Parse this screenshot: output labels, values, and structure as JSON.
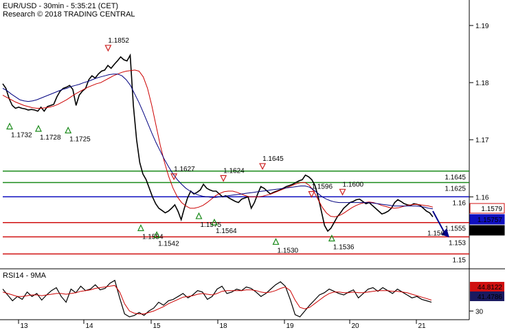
{
  "chart_data": [
    {
      "type": "line",
      "header": [
        "EUR/USD - 30min - 5:35:21 (CET)",
        "Research © 2018 TRADING CENTRAL"
      ],
      "x_ticks": [
        "13",
        "14",
        "15",
        "18",
        "19",
        "20",
        "21"
      ],
      "y_ticks": [
        "1.19",
        "1.18",
        "1.17",
        "1.16"
      ],
      "ylim": [
        1.148,
        1.1935
      ],
      "grid": false,
      "series": [
        {
          "role": "price",
          "color": "#000000",
          "values": [
            1.1798,
            1.179,
            1.1772,
            1.176,
            1.1755,
            1.1757,
            1.1755,
            1.1754,
            1.1752,
            1.1753,
            1.1752,
            1.175,
            1.1757,
            1.175,
            1.1758,
            1.176,
            1.1762,
            1.1775,
            1.1785,
            1.179,
            1.1792,
            1.1795,
            1.1788,
            1.176,
            1.1778,
            1.1785,
            1.179,
            1.1805,
            1.1812,
            1.1808,
            1.1815,
            1.182,
            1.1822,
            1.183,
            1.1825,
            1.1832,
            1.1838,
            1.1845,
            1.184,
            1.1838,
            1.1848,
            1.176,
            1.17,
            1.166,
            1.164,
            1.163,
            1.1615,
            1.16,
            1.1588,
            1.158,
            1.1576,
            1.1572,
            1.1575,
            1.158,
            1.1586,
            1.1575,
            1.156,
            1.158,
            1.1598,
            1.161,
            1.1605,
            1.1608,
            1.1612,
            1.1622,
            1.1615,
            1.1612,
            1.161,
            1.161,
            1.1605,
            1.16,
            1.1602,
            1.1598,
            1.1595,
            1.1592,
            1.159,
            1.1596,
            1.1598,
            1.16,
            1.158,
            1.159,
            1.1605,
            1.1618,
            1.1615,
            1.161,
            1.1605,
            1.1608,
            1.161,
            1.1612,
            1.1615,
            1.1618,
            1.162,
            1.1622,
            1.1625,
            1.1628,
            1.163,
            1.1638,
            1.1635,
            1.163,
            1.162,
            1.16,
            1.1575,
            1.155,
            1.154,
            1.1545,
            1.1555,
            1.1565,
            1.1572,
            1.158,
            1.1585,
            1.159,
            1.1592,
            1.1595,
            1.1596,
            1.1592,
            1.1588,
            1.159,
            1.1585,
            1.158,
            1.1575,
            1.157,
            1.1572,
            1.1575,
            1.158,
            1.159,
            1.1595,
            1.1592,
            1.1588,
            1.1586,
            1.1585,
            1.1588,
            1.1587,
            1.1585,
            1.158,
            1.1575,
            1.1572,
            1.1565
          ]
        },
        {
          "role": "moving-average-fast",
          "color": "#cc0000",
          "values": [
            1.1778,
            1.1774,
            1.177,
            1.1766,
            1.1763,
            1.176,
            1.1758,
            1.1756,
            1.1755,
            1.1755,
            1.1756,
            1.1757,
            1.1759,
            1.1762,
            1.1766,
            1.177,
            1.1775,
            1.178,
            1.1784,
            1.1788,
            1.1792,
            1.1795,
            1.1798,
            1.18,
            1.1804,
            1.1808,
            1.1812,
            1.1815,
            1.1818,
            1.182,
            1.1821,
            1.1822,
            1.182,
            1.181,
            1.179,
            1.176,
            1.1725,
            1.169,
            1.166,
            1.1635,
            1.1615,
            1.16,
            1.159,
            1.1584,
            1.158,
            1.158,
            1.1582,
            1.1585,
            1.159,
            1.1596,
            1.1602,
            1.1606,
            1.1609,
            1.161,
            1.161,
            1.1608,
            1.1605,
            1.1602,
            1.16,
            1.16,
            1.16,
            1.1601,
            1.1603,
            1.1605,
            1.1608,
            1.1611,
            1.1614,
            1.1617,
            1.162,
            1.1623,
            1.1625,
            1.1625,
            1.162,
            1.161,
            1.1596,
            1.1582,
            1.1572,
            1.1566,
            1.1565,
            1.1567,
            1.1571,
            1.1576,
            1.1581,
            1.1585,
            1.1588,
            1.159,
            1.1591,
            1.159,
            1.1588,
            1.1585,
            1.1583,
            1.1581,
            1.158,
            1.1581,
            1.1583,
            1.1585,
            1.1586,
            1.1587,
            1.1586,
            1.1585,
            1.1584,
            1.1582
          ]
        },
        {
          "role": "moving-average-slow",
          "color": "#000080",
          "values": [
            1.179,
            1.1786,
            1.178,
            1.1775,
            1.177,
            1.1768,
            1.1767,
            1.1768,
            1.177,
            1.1773,
            1.1776,
            1.1779,
            1.1782,
            1.1785,
            1.1788,
            1.179,
            1.1793,
            1.1795,
            1.1797,
            1.18,
            1.1802,
            1.1805,
            1.1808,
            1.181,
            1.1812,
            1.1814,
            1.1815,
            1.1815,
            1.1812,
            1.1805,
            1.1795,
            1.178,
            1.1765,
            1.1748,
            1.173,
            1.1712,
            1.1695,
            1.168,
            1.1665,
            1.1652,
            1.164,
            1.163,
            1.1622,
            1.1615,
            1.161,
            1.1606,
            1.1603,
            1.1601,
            1.16,
            1.1599,
            1.1599,
            1.16,
            1.1601,
            1.1602,
            1.1603,
            1.1604,
            1.1605,
            1.1606,
            1.1607,
            1.1608,
            1.1609,
            1.161,
            1.1611,
            1.1612,
            1.1613,
            1.1614,
            1.1615,
            1.1616,
            1.1617,
            1.1618,
            1.1619,
            1.1619,
            1.1617,
            1.1612,
            1.1606,
            1.16,
            1.1596,
            1.1593,
            1.1591,
            1.159,
            1.159,
            1.159,
            1.159,
            1.159,
            1.159,
            1.159,
            1.159,
            1.1589,
            1.1588,
            1.1587,
            1.1586,
            1.1585,
            1.1584,
            1.1584,
            1.1584,
            1.1584,
            1.1584,
            1.1584,
            1.1583,
            1.1582,
            1.158,
            1.1579
          ]
        }
      ],
      "levels": [
        {
          "value": 1.1645,
          "label": "1.1645",
          "color": "#1a8a1a"
        },
        {
          "value": 1.1625,
          "label": "1.1625",
          "color": "#1a8a1a"
        },
        {
          "value": 1.16,
          "label": "1.16",
          "color": "#1010c0"
        },
        {
          "value": 1.1555,
          "label": "1.1555",
          "color": "#d01010"
        },
        {
          "value": 1.153,
          "label": "1.153",
          "color": "#d01010"
        },
        {
          "value": 1.15,
          "label": "1.15",
          "color": "#d01010"
        }
      ],
      "price_tags": [
        {
          "value": 1.1579,
          "label": "1.1579",
          "color": "#d01010",
          "text_color": "#d01010",
          "fill": "#ffffff"
        },
        {
          "value": 1.1576,
          "label": "1.15757",
          "color": "#1010c0",
          "text_color": "#ffffff",
          "fill": "#1010c0"
        },
        {
          "value": 1.1566,
          "label": "1.15656",
          "color": "#000000",
          "text_color": "#ffffff",
          "fill": "#000000"
        }
      ],
      "annotations": [
        {
          "label": "1.1852",
          "x": 0.245,
          "value": 1.1852,
          "kind": "high"
        },
        {
          "label": "1.1732",
          "x": 0.016,
          "value": 1.1732,
          "kind": "low"
        },
        {
          "label": "1.1728",
          "x": 0.083,
          "value": 1.1728,
          "kind": "low"
        },
        {
          "label": "1.1725",
          "x": 0.152,
          "value": 1.1725,
          "kind": "low"
        },
        {
          "label": "1.1627",
          "x": 0.398,
          "value": 1.1627,
          "kind": "high"
        },
        {
          "label": "1.1554",
          "x": 0.321,
          "value": 1.1554,
          "kind": "low"
        },
        {
          "label": "1.1542",
          "x": 0.358,
          "value": 1.1542,
          "kind": "low"
        },
        {
          "label": "1.1624",
          "x": 0.513,
          "value": 1.1624,
          "kind": "high"
        },
        {
          "label": "1.1575",
          "x": 0.456,
          "value": 1.1575,
          "kind": "low"
        },
        {
          "label": "1.1564",
          "x": 0.492,
          "value": 1.1564,
          "kind": "low"
        },
        {
          "label": "1.1645",
          "x": 0.604,
          "value": 1.1645,
          "kind": "high"
        },
        {
          "label": "1.1530",
          "x": 0.635,
          "value": 1.153,
          "kind": "low"
        },
        {
          "label": "1.1596",
          "x": 0.718,
          "value": 1.1596,
          "kind": "high"
        },
        {
          "label": "1.1536",
          "x": 0.765,
          "value": 1.1536,
          "kind": "low"
        },
        {
          "label": "1.1600",
          "x": 0.79,
          "value": 1.16,
          "kind": "high"
        }
      ],
      "partial_label": "1.156",
      "forecast": {
        "from": 1.1575,
        "to": 1.1535,
        "color": "#00008b"
      }
    },
    {
      "type": "line",
      "title": "RSI14 - 9MA",
      "y_ticks": [
        "30"
      ],
      "ylim": [
        20,
        85
      ],
      "series": [
        {
          "role": "rsi",
          "color": "#000000",
          "values": [
            60,
            52,
            44,
            50,
            46,
            56,
            50,
            54,
            45,
            52,
            58,
            62,
            50,
            42,
            60,
            55,
            64,
            58,
            60,
            66,
            59,
            61,
            68,
            72,
            48,
            26,
            22,
            24,
            28,
            24,
            30,
            34,
            42,
            38,
            44,
            46,
            50,
            54,
            48,
            52,
            58,
            56,
            46,
            50,
            60,
            64,
            54,
            56,
            60,
            58,
            63,
            61,
            56,
            50,
            54,
            60,
            66,
            70,
            64,
            46,
            25,
            22,
            30,
            38,
            45,
            52,
            55,
            60,
            57,
            54,
            52,
            56,
            59,
            48,
            54,
            60,
            62,
            57,
            62,
            58,
            54,
            60,
            56,
            52,
            48,
            50,
            46,
            44,
            42
          ]
        },
        {
          "role": "ma",
          "color": "#cc0000",
          "values": [
            56,
            54,
            52,
            50,
            50,
            51,
            52,
            52,
            51,
            52,
            53,
            54,
            54,
            53,
            54,
            55,
            57,
            58,
            59,
            61,
            62,
            63,
            64,
            65,
            56,
            40,
            30,
            27,
            26,
            26,
            28,
            30,
            33,
            36,
            40,
            43,
            46,
            49,
            50,
            51,
            53,
            54,
            53,
            52,
            54,
            57,
            58,
            58,
            58,
            58,
            59,
            59,
            58,
            56,
            55,
            56,
            58,
            61,
            63,
            58,
            45,
            35,
            33,
            35,
            40,
            45,
            50,
            54,
            56,
            56,
            55,
            55,
            56,
            55,
            55,
            56,
            57,
            58,
            58,
            58,
            57,
            57,
            56,
            55,
            53,
            51,
            49,
            47,
            45
          ]
        }
      ],
      "tags": [
        {
          "value": 44.8122,
          "label": "44.8122",
          "color": "#d01010",
          "text_color": "#ffffff",
          "fill": "#d01010"
        },
        {
          "value": 41.4786,
          "label": "41.4786",
          "color": "#1a1a60",
          "text_color": "#ffffff",
          "fill": "#1a1a60"
        }
      ]
    }
  ]
}
